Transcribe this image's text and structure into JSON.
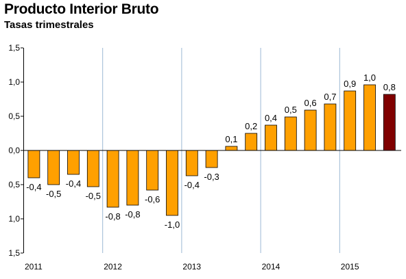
{
  "chart_data": {
    "type": "bar",
    "title": "Producto Interior Bruto",
    "subtitle": "Tasas trimestrales",
    "xlabel": "",
    "ylabel": "",
    "ylim": [
      -1.5,
      1.5
    ],
    "yticks": [
      1.5,
      1.0,
      0.5,
      0.0,
      -0.5,
      -1.0,
      -1.5
    ],
    "ytick_labels": [
      "1,5",
      "1,0",
      "0,5",
      "0,0",
      "0,5",
      "1,0",
      "1,5"
    ],
    "year_labels": [
      "2011",
      "2012",
      "2013",
      "2014",
      "2015"
    ],
    "quarters_per_year": 4,
    "values": [
      -0.4,
      -0.5,
      -0.35,
      -0.53,
      -0.83,
      -0.8,
      -0.58,
      -0.95,
      -0.37,
      -0.25,
      0.06,
      0.25,
      0.37,
      0.49,
      0.59,
      0.68,
      0.87,
      0.96,
      0.82
    ],
    "value_labels": [
      "-0,4",
      "-0,5",
      "-0,4",
      "-0,5",
      "-0,8",
      "-0,8",
      "-0,6",
      "-1,0",
      "-0,4",
      "-0,3",
      "0,1",
      "0,2",
      "0,4",
      "0,5",
      "0,6",
      "0,7",
      "0,9",
      "1,0",
      "0,8"
    ],
    "bar_color": "#ffa000",
    "highlight_color": "#800000",
    "highlight_index": 18,
    "bar_stroke": "#000000",
    "separator_color": "#9bb7d4",
    "grid": false,
    "legend": "none"
  }
}
